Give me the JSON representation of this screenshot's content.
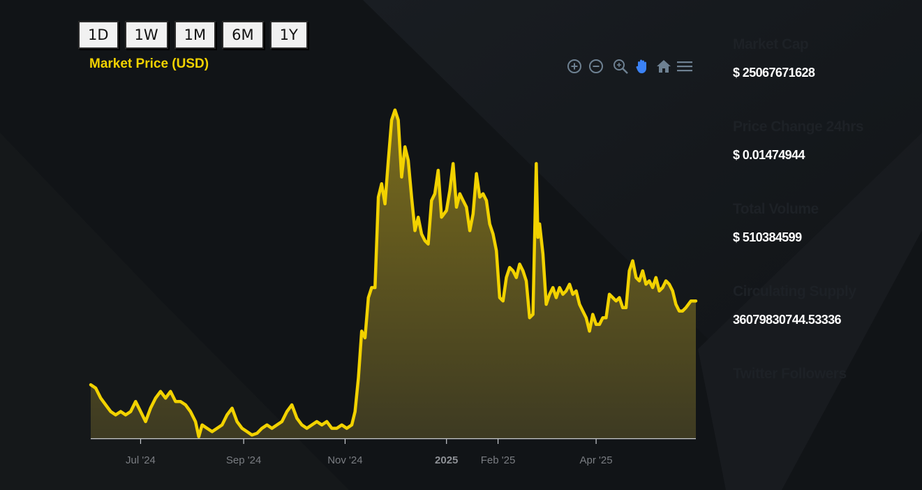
{
  "range_buttons": [
    {
      "label": "1D"
    },
    {
      "label": "1W"
    },
    {
      "label": "1M"
    },
    {
      "label": "6M"
    },
    {
      "label": "1Y"
    }
  ],
  "toolbar": {
    "icons": [
      "zoom-in-icon",
      "zoom-out-icon",
      "zoom-select-icon",
      "pan-hand-icon",
      "reset-home-icon",
      "menu-icon"
    ],
    "pan_active_color": "#3b82f6",
    "icon_color": "#6e8192"
  },
  "colors": {
    "line": "#f2d200",
    "fill_top": "#7a6c1c",
    "fill_bottom": "#3d3a22",
    "axis": "#c9ccd1",
    "background": "#111417"
  },
  "stats": [
    {
      "label": "Market Cap",
      "value": "$ 25067671628"
    },
    {
      "label": "Price Change 24hrs",
      "value": "$ 0.01474944"
    },
    {
      "label": "Total Volume",
      "value": "$ 510384599"
    },
    {
      "label": "Circulating Supply",
      "value": "36079830744.53336"
    },
    {
      "label": "Twitter Followers",
      "value": ""
    }
  ],
  "chart_data": {
    "type": "area",
    "title": "Market Price (USD)",
    "xlabel": "",
    "ylabel": "",
    "x_axis": {
      "start": "2024-06-01",
      "end": "2025-05-31",
      "ticks": [
        {
          "date": "2024-07-01",
          "label": "Jul '24",
          "major": false
        },
        {
          "date": "2024-09-01",
          "label": "Sep '24",
          "major": false
        },
        {
          "date": "2024-11-01",
          "label": "Nov '24",
          "major": false
        },
        {
          "date": "2025-01-01",
          "label": "2025",
          "major": true
        },
        {
          "date": "2025-02-01",
          "label": "Feb '25",
          "major": false
        },
        {
          "date": "2025-04-01",
          "label": "Apr '25",
          "major": false
        }
      ]
    },
    "y_axis": {
      "visible": false,
      "min": 0,
      "max": 100
    },
    "grid": false,
    "series": [
      {
        "values": [
          {
            "date": "2024-06-01",
            "value": 16
          },
          {
            "date": "2024-06-04",
            "value": 15
          },
          {
            "date": "2024-06-07",
            "value": 12
          },
          {
            "date": "2024-06-10",
            "value": 10
          },
          {
            "date": "2024-06-13",
            "value": 8
          },
          {
            "date": "2024-06-16",
            "value": 7
          },
          {
            "date": "2024-06-19",
            "value": 8
          },
          {
            "date": "2024-06-22",
            "value": 7
          },
          {
            "date": "2024-06-25",
            "value": 8
          },
          {
            "date": "2024-06-28",
            "value": 11
          },
          {
            "date": "2024-07-01",
            "value": 8
          },
          {
            "date": "2024-07-04",
            "value": 5
          },
          {
            "date": "2024-07-07",
            "value": 9
          },
          {
            "date": "2024-07-10",
            "value": 12
          },
          {
            "date": "2024-07-13",
            "value": 14
          },
          {
            "date": "2024-07-16",
            "value": 12
          },
          {
            "date": "2024-07-19",
            "value": 14
          },
          {
            "date": "2024-07-22",
            "value": 11
          },
          {
            "date": "2024-07-25",
            "value": 11
          },
          {
            "date": "2024-07-28",
            "value": 10
          },
          {
            "date": "2024-07-31",
            "value": 8
          },
          {
            "date": "2024-08-03",
            "value": 5
          },
          {
            "date": "2024-08-05",
            "value": 0.5
          },
          {
            "date": "2024-08-07",
            "value": 4
          },
          {
            "date": "2024-08-10",
            "value": 3
          },
          {
            "date": "2024-08-13",
            "value": 2
          },
          {
            "date": "2024-08-16",
            "value": 3
          },
          {
            "date": "2024-08-19",
            "value": 4
          },
          {
            "date": "2024-08-22",
            "value": 7
          },
          {
            "date": "2024-08-25",
            "value": 9
          },
          {
            "date": "2024-08-28",
            "value": 5
          },
          {
            "date": "2024-08-31",
            "value": 3
          },
          {
            "date": "2024-09-03",
            "value": 2
          },
          {
            "date": "2024-09-06",
            "value": 1
          },
          {
            "date": "2024-09-09",
            "value": 1.5
          },
          {
            "date": "2024-09-12",
            "value": 3
          },
          {
            "date": "2024-09-15",
            "value": 4
          },
          {
            "date": "2024-09-18",
            "value": 3
          },
          {
            "date": "2024-09-21",
            "value": 4
          },
          {
            "date": "2024-09-24",
            "value": 5
          },
          {
            "date": "2024-09-27",
            "value": 8
          },
          {
            "date": "2024-09-30",
            "value": 10
          },
          {
            "date": "2024-10-03",
            "value": 6
          },
          {
            "date": "2024-10-06",
            "value": 4
          },
          {
            "date": "2024-10-09",
            "value": 3
          },
          {
            "date": "2024-10-12",
            "value": 4
          },
          {
            "date": "2024-10-15",
            "value": 5
          },
          {
            "date": "2024-10-18",
            "value": 4
          },
          {
            "date": "2024-10-21",
            "value": 5
          },
          {
            "date": "2024-10-24",
            "value": 3
          },
          {
            "date": "2024-10-27",
            "value": 3
          },
          {
            "date": "2024-10-30",
            "value": 4
          },
          {
            "date": "2024-11-02",
            "value": 3
          },
          {
            "date": "2024-11-05",
            "value": 4
          },
          {
            "date": "2024-11-07",
            "value": 8
          },
          {
            "date": "2024-11-09",
            "value": 18
          },
          {
            "date": "2024-11-11",
            "value": 32
          },
          {
            "date": "2024-11-13",
            "value": 30
          },
          {
            "date": "2024-11-15",
            "value": 42
          },
          {
            "date": "2024-11-17",
            "value": 45
          },
          {
            "date": "2024-11-19",
            "value": 45
          },
          {
            "date": "2024-11-21",
            "value": 72
          },
          {
            "date": "2024-11-23",
            "value": 76
          },
          {
            "date": "2024-11-25",
            "value": 70
          },
          {
            "date": "2024-11-27",
            "value": 83
          },
          {
            "date": "2024-11-29",
            "value": 95
          },
          {
            "date": "2024-12-01",
            "value": 98
          },
          {
            "date": "2024-12-03",
            "value": 95
          },
          {
            "date": "2024-12-05",
            "value": 78
          },
          {
            "date": "2024-12-07",
            "value": 87
          },
          {
            "date": "2024-12-09",
            "value": 83
          },
          {
            "date": "2024-12-11",
            "value": 72
          },
          {
            "date": "2024-12-13",
            "value": 62
          },
          {
            "date": "2024-12-15",
            "value": 66
          },
          {
            "date": "2024-12-17",
            "value": 61
          },
          {
            "date": "2024-12-19",
            "value": 59
          },
          {
            "date": "2024-12-21",
            "value": 58
          },
          {
            "date": "2024-12-23",
            "value": 71
          },
          {
            "date": "2024-12-25",
            "value": 73
          },
          {
            "date": "2024-12-27",
            "value": 80
          },
          {
            "date": "2024-12-29",
            "value": 66
          },
          {
            "date": "2025-01-01",
            "value": 68
          },
          {
            "date": "2025-01-03",
            "value": 74
          },
          {
            "date": "2025-01-05",
            "value": 82
          },
          {
            "date": "2025-01-07",
            "value": 69
          },
          {
            "date": "2025-01-09",
            "value": 73
          },
          {
            "date": "2025-01-11",
            "value": 71
          },
          {
            "date": "2025-01-13",
            "value": 69
          },
          {
            "date": "2025-01-15",
            "value": 62
          },
          {
            "date": "2025-01-17",
            "value": 67
          },
          {
            "date": "2025-01-19",
            "value": 79
          },
          {
            "date": "2025-01-21",
            "value": 72
          },
          {
            "date": "2025-01-23",
            "value": 73
          },
          {
            "date": "2025-01-25",
            "value": 71
          },
          {
            "date": "2025-01-27",
            "value": 64
          },
          {
            "date": "2025-01-29",
            "value": 61
          },
          {
            "date": "2025-01-31",
            "value": 56
          },
          {
            "date": "2025-02-02",
            "value": 42
          },
          {
            "date": "2025-02-04",
            "value": 41
          },
          {
            "date": "2025-02-06",
            "value": 48
          },
          {
            "date": "2025-02-08",
            "value": 51
          },
          {
            "date": "2025-02-10",
            "value": 50
          },
          {
            "date": "2025-02-12",
            "value": 48
          },
          {
            "date": "2025-02-14",
            "value": 52
          },
          {
            "date": "2025-02-16",
            "value": 50
          },
          {
            "date": "2025-02-18",
            "value": 47
          },
          {
            "date": "2025-02-20",
            "value": 36
          },
          {
            "date": "2025-02-22",
            "value": 37
          },
          {
            "date": "2025-02-24",
            "value": 82
          },
          {
            "date": "2025-02-25",
            "value": 60
          },
          {
            "date": "2025-02-26",
            "value": 64
          },
          {
            "date": "2025-02-28",
            "value": 55
          },
          {
            "date": "2025-03-02",
            "value": 40
          },
          {
            "date": "2025-03-04",
            "value": 43
          },
          {
            "date": "2025-03-06",
            "value": 45
          },
          {
            "date": "2025-03-08",
            "value": 42
          },
          {
            "date": "2025-03-10",
            "value": 45
          },
          {
            "date": "2025-03-12",
            "value": 43
          },
          {
            "date": "2025-03-14",
            "value": 44
          },
          {
            "date": "2025-03-16",
            "value": 46
          },
          {
            "date": "2025-03-18",
            "value": 43
          },
          {
            "date": "2025-03-20",
            "value": 44
          },
          {
            "date": "2025-03-22",
            "value": 40
          },
          {
            "date": "2025-03-24",
            "value": 38
          },
          {
            "date": "2025-03-26",
            "value": 36
          },
          {
            "date": "2025-03-28",
            "value": 32
          },
          {
            "date": "2025-03-30",
            "value": 37
          },
          {
            "date": "2025-04-01",
            "value": 34
          },
          {
            "date": "2025-04-03",
            "value": 34
          },
          {
            "date": "2025-04-05",
            "value": 36
          },
          {
            "date": "2025-04-07",
            "value": 36
          },
          {
            "date": "2025-04-09",
            "value": 43
          },
          {
            "date": "2025-04-11",
            "value": 42
          },
          {
            "date": "2025-04-13",
            "value": 41
          },
          {
            "date": "2025-04-15",
            "value": 42
          },
          {
            "date": "2025-04-17",
            "value": 39
          },
          {
            "date": "2025-04-19",
            "value": 39
          },
          {
            "date": "2025-04-21",
            "value": 50
          },
          {
            "date": "2025-04-23",
            "value": 53
          },
          {
            "date": "2025-04-25",
            "value": 48
          },
          {
            "date": "2025-04-27",
            "value": 47
          },
          {
            "date": "2025-04-29",
            "value": 50
          },
          {
            "date": "2025-05-01",
            "value": 46
          },
          {
            "date": "2025-05-03",
            "value": 47
          },
          {
            "date": "2025-05-05",
            "value": 45
          },
          {
            "date": "2025-05-07",
            "value": 48
          },
          {
            "date": "2025-05-09",
            "value": 44
          },
          {
            "date": "2025-05-11",
            "value": 45
          },
          {
            "date": "2025-05-13",
            "value": 47
          },
          {
            "date": "2025-05-15",
            "value": 46
          },
          {
            "date": "2025-05-17",
            "value": 44
          },
          {
            "date": "2025-05-19",
            "value": 40
          },
          {
            "date": "2025-05-21",
            "value": 38
          },
          {
            "date": "2025-05-23",
            "value": 38
          },
          {
            "date": "2025-05-25",
            "value": 39
          },
          {
            "date": "2025-05-28",
            "value": 41
          },
          {
            "date": "2025-05-31",
            "value": 41
          }
        ]
      }
    ]
  }
}
